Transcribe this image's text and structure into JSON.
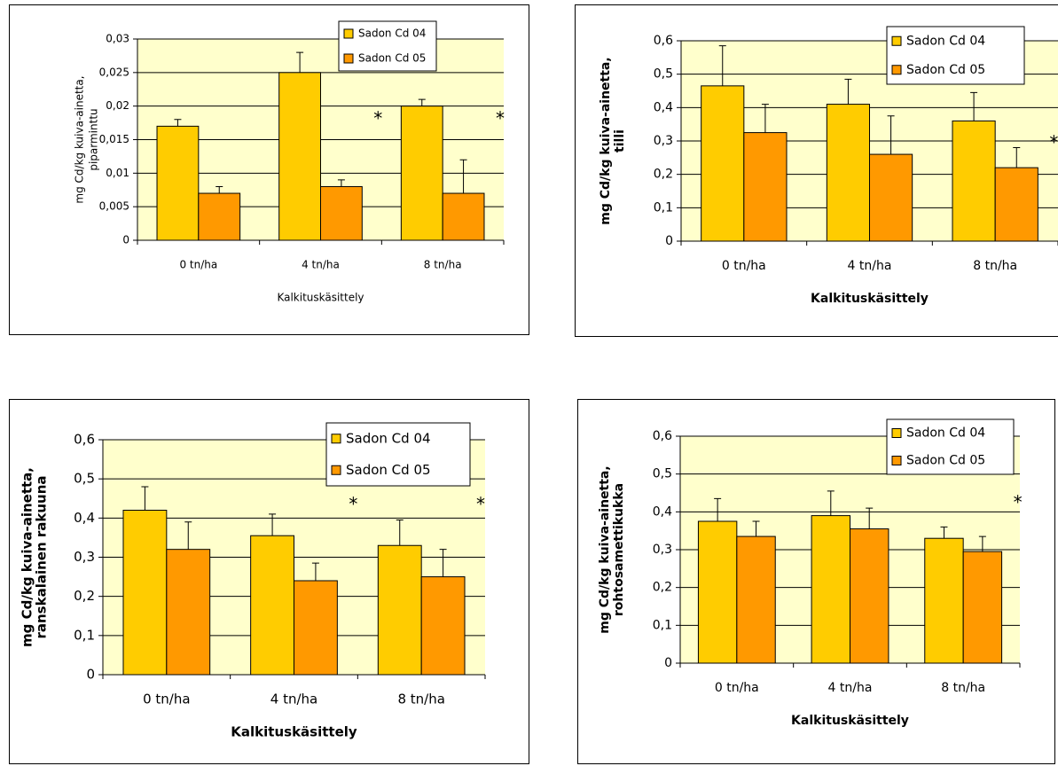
{
  "chart_data": [
    {
      "type": "bar",
      "y_label": [
        "mg Cd/kg kuiva-ainetta,",
        "piparminttu"
      ],
      "x_label": "Kalkituskäsittely",
      "categories": [
        "0 tn/ha",
        "4 tn/ha",
        "8 tn/ha"
      ],
      "series": [
        {
          "name": "Sadon Cd 04",
          "color": "#ffcc00",
          "values": [
            0.017,
            0.025,
            0.02
          ],
          "errors": [
            0.001,
            0.003,
            0.001
          ]
        },
        {
          "name": "Sadon Cd 05",
          "color": "#ff9900",
          "values": [
            0.007,
            0.008,
            0.007
          ],
          "errors": [
            0.001,
            0.001,
            0.005
          ]
        }
      ],
      "ylim": [
        0,
        0.03
      ],
      "yticks": [
        0,
        {
          "value": 0.005,
          "label": "0,005"
        },
        {
          "value": 0.01,
          "label": "0,01"
        },
        {
          "value": 0.015,
          "label": "0,015"
        },
        {
          "value": 0.02,
          "label": "0,02"
        },
        {
          "value": 0.025,
          "label": "0,025"
        },
        {
          "value": 0.03,
          "label": "0,03"
        }
      ],
      "grid": true,
      "legend": "upper right",
      "annotations": [
        {
          "text": "*",
          "category": "4 tn/ha"
        },
        {
          "text": "*",
          "category": "8 tn/ha"
        }
      ]
    },
    {
      "type": "bar",
      "y_label": [
        "mg Cd/kg kuiva-ainetta,",
        "tilli"
      ],
      "x_label": "Kalkituskäsittely",
      "categories": [
        "0 tn/ha",
        "4 tn/ha",
        "8 tn/ha"
      ],
      "series": [
        {
          "name": "Sadon Cd 04",
          "color": "#ffcc00",
          "values": [
            0.465,
            0.41,
            0.36
          ],
          "errors": [
            0.12,
            0.075,
            0.085
          ]
        },
        {
          "name": "Sadon Cd 05",
          "color": "#ff9900",
          "values": [
            0.325,
            0.26,
            0.22
          ],
          "errors": [
            0.085,
            0.115,
            0.06
          ]
        }
      ],
      "ylim": [
        0,
        0.6
      ],
      "yticks": [
        0,
        {
          "value": 0.1,
          "label": "0,1"
        },
        {
          "value": 0.2,
          "label": "0,2"
        },
        {
          "value": 0.3,
          "label": "0,3"
        },
        {
          "value": 0.4,
          "label": "0,4"
        },
        {
          "value": 0.5,
          "label": "0,5"
        },
        {
          "value": 0.6,
          "label": "0,6"
        }
      ],
      "grid": true,
      "legend": "upper right",
      "annotations": [
        {
          "text": "*",
          "category": "8 tn/ha"
        }
      ]
    },
    {
      "type": "bar",
      "y_label": [
        "mg Cd/kg kuiva-ainetta,",
        "ranskalainen rakuuna"
      ],
      "x_label": "Kalkituskäsittely",
      "categories": [
        "0 tn/ha",
        "4 tn/ha",
        "8 tn/ha"
      ],
      "series": [
        {
          "name": "Sadon Cd 04",
          "color": "#ffcc00",
          "values": [
            0.42,
            0.355,
            0.33
          ],
          "errors": [
            0.06,
            0.055,
            0.065
          ]
        },
        {
          "name": "Sadon Cd 05",
          "color": "#ff9900",
          "values": [
            0.32,
            0.24,
            0.25
          ],
          "errors": [
            0.07,
            0.045,
            0.07
          ]
        }
      ],
      "ylim": [
        0,
        0.6
      ],
      "yticks": [
        0,
        {
          "value": 0.1,
          "label": "0,1"
        },
        {
          "value": 0.2,
          "label": "0,2"
        },
        {
          "value": 0.3,
          "label": "0,3"
        },
        {
          "value": 0.4,
          "label": "0,4"
        },
        {
          "value": 0.5,
          "label": "0,5"
        },
        {
          "value": 0.6,
          "label": "0,6"
        }
      ],
      "grid": true,
      "legend": "upper right",
      "annotations": [
        {
          "text": "*",
          "category": "4 tn/ha"
        },
        {
          "text": "*",
          "category": "8 tn/ha"
        }
      ]
    },
    {
      "type": "bar",
      "y_label": [
        "mg Cd/kg kuiva-ainetta,",
        "rohtosamettikukka"
      ],
      "x_label": "Kalkituskäsittely",
      "categories": [
        "0 tn/ha",
        "4 tn/ha",
        "8 tn/ha"
      ],
      "series": [
        {
          "name": "Sadon Cd 04",
          "color": "#ffcc00",
          "values": [
            0.375,
            0.39,
            0.33
          ],
          "errors": [
            0.06,
            0.065,
            0.03
          ]
        },
        {
          "name": "Sadon Cd 05",
          "color": "#ff9900",
          "values": [
            0.335,
            0.355,
            0.295
          ],
          "errors": [
            0.04,
            0.055,
            0.04
          ]
        }
      ],
      "ylim": [
        0,
        0.6
      ],
      "yticks": [
        0,
        {
          "value": 0.1,
          "label": "0,1"
        },
        {
          "value": 0.2,
          "label": "0,2"
        },
        {
          "value": 0.3,
          "label": "0,3"
        },
        {
          "value": 0.4,
          "label": "0,4"
        },
        {
          "value": 0.5,
          "label": "0,5"
        },
        {
          "value": 0.6,
          "label": "0,6"
        }
      ],
      "grid": true,
      "legend": "upper right",
      "annotations": [
        {
          "text": "*",
          "category": "8 tn/ha"
        }
      ]
    }
  ]
}
